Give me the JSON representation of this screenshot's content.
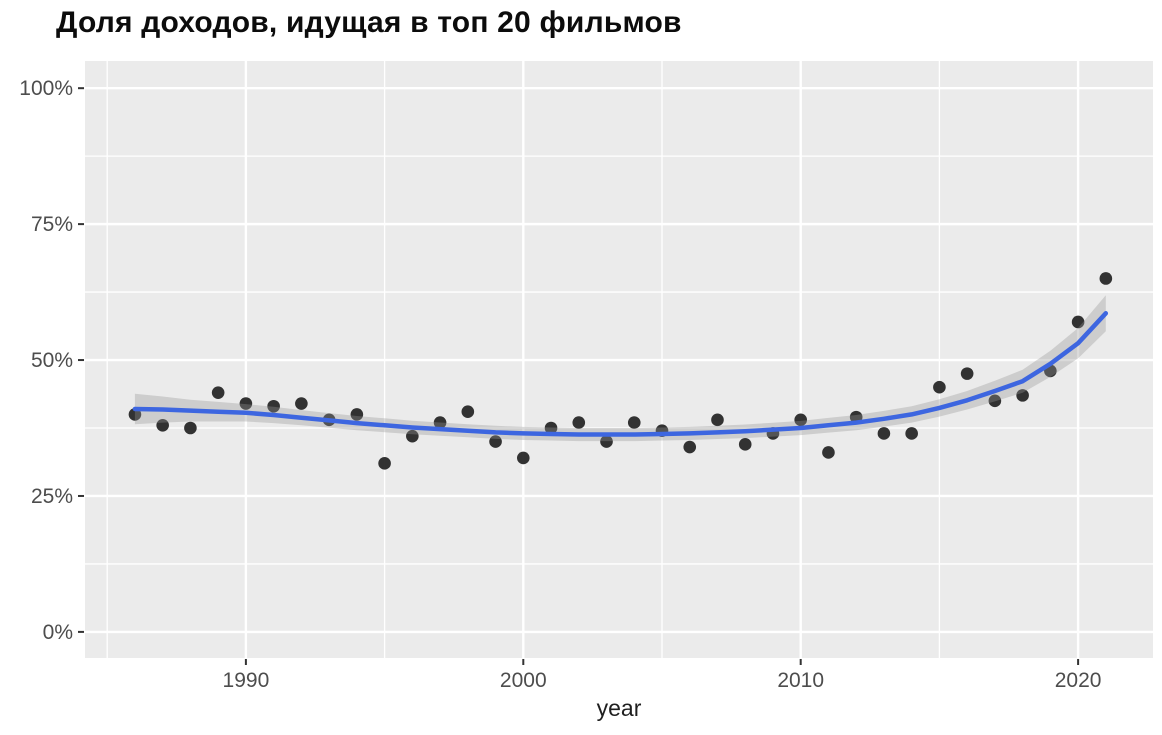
{
  "title": "Доля доходов, идущая в топ 20 фильмов",
  "chart_data": {
    "type": "scatter",
    "title": "Доля доходов, идущая в топ 20 фильмов",
    "xlabel": "year",
    "ylabel": "",
    "legend": false,
    "grid": true,
    "x_axis": {
      "range": [
        1984.2,
        2022.7
      ],
      "ticks": [
        {
          "value": 1990,
          "label": "1990"
        },
        {
          "value": 2000,
          "label": "2000"
        },
        {
          "value": 2010,
          "label": "2010"
        },
        {
          "value": 2020,
          "label": "2020"
        }
      ],
      "minor": [
        1985,
        1995,
        2005,
        2015
      ]
    },
    "y_axis": {
      "range": [
        -4.8,
        105.0
      ],
      "ticks": [
        {
          "value": 0,
          "label": "0%"
        },
        {
          "value": 25,
          "label": "25%"
        },
        {
          "value": 50,
          "label": "50%"
        },
        {
          "value": 75,
          "label": "75%"
        },
        {
          "value": 100,
          "label": "100%"
        }
      ],
      "minor": [
        12.5,
        37.5,
        62.5,
        87.5
      ]
    },
    "series": [
      {
        "name": "top-20-share-points",
        "type": "scatter",
        "points": [
          [
            1986,
            40
          ],
          [
            1987,
            38
          ],
          [
            1988,
            37.5
          ],
          [
            1989,
            44
          ],
          [
            1990,
            42
          ],
          [
            1991,
            41.5
          ],
          [
            1992,
            42
          ],
          [
            1993,
            39
          ],
          [
            1994,
            40
          ],
          [
            1995,
            31
          ],
          [
            1996,
            36
          ],
          [
            1997,
            38.5
          ],
          [
            1998,
            40.5
          ],
          [
            1999,
            35
          ],
          [
            2000,
            32
          ],
          [
            2001,
            37.5
          ],
          [
            2002,
            38.5
          ],
          [
            2003,
            35
          ],
          [
            2004,
            38.5
          ],
          [
            2005,
            37
          ],
          [
            2006,
            34
          ],
          [
            2007,
            39
          ],
          [
            2008,
            34.5
          ],
          [
            2009,
            36.5
          ],
          [
            2010,
            39
          ],
          [
            2011,
            33
          ],
          [
            2012,
            39.5
          ],
          [
            2013,
            36.5
          ],
          [
            2014,
            36.5
          ],
          [
            2015,
            45
          ],
          [
            2016,
            47.5
          ],
          [
            2017,
            42.5
          ],
          [
            2018,
            43.5
          ],
          [
            2019,
            48
          ],
          [
            2020,
            57
          ],
          [
            2021,
            65
          ]
        ]
      },
      {
        "name": "loess-smooth-with-ci",
        "type": "line",
        "points_y_ci": [
          [
            1986,
            41.0,
            2.8
          ],
          [
            1987,
            40.9,
            2.4
          ],
          [
            1988,
            40.7,
            2.0
          ],
          [
            1989,
            40.5,
            1.8
          ],
          [
            1990,
            40.3,
            1.6
          ],
          [
            1991,
            39.9,
            1.5
          ],
          [
            1992,
            39.4,
            1.4
          ],
          [
            1993,
            38.9,
            1.35
          ],
          [
            1994,
            38.4,
            1.3
          ],
          [
            1995,
            38.0,
            1.28
          ],
          [
            1996,
            37.6,
            1.25
          ],
          [
            1997,
            37.3,
            1.22
          ],
          [
            1998,
            37.0,
            1.2
          ],
          [
            1999,
            36.7,
            1.2
          ],
          [
            2000,
            36.5,
            1.2
          ],
          [
            2001,
            36.4,
            1.2
          ],
          [
            2002,
            36.3,
            1.2
          ],
          [
            2003,
            36.3,
            1.2
          ],
          [
            2004,
            36.3,
            1.2
          ],
          [
            2005,
            36.4,
            1.2
          ],
          [
            2006,
            36.5,
            1.2
          ],
          [
            2007,
            36.7,
            1.22
          ],
          [
            2008,
            36.9,
            1.25
          ],
          [
            2009,
            37.2,
            1.28
          ],
          [
            2010,
            37.5,
            1.3
          ],
          [
            2011,
            38.0,
            1.35
          ],
          [
            2012,
            38.5,
            1.4
          ],
          [
            2013,
            39.2,
            1.45
          ],
          [
            2014,
            40.0,
            1.5
          ],
          [
            2015,
            41.2,
            1.6
          ],
          [
            2016,
            42.6,
            1.7
          ],
          [
            2017,
            44.3,
            1.9
          ],
          [
            2018,
            46.1,
            2.1
          ],
          [
            2019,
            49.3,
            2.4
          ],
          [
            2020,
            53.1,
            2.8
          ],
          [
            2021,
            58.6,
            3.3
          ]
        ]
      }
    ],
    "colors": {
      "panel": "#EBEBEB",
      "grid": "#FFFFFF",
      "point": "#222222",
      "line": "#3D66E0",
      "band": "rgba(150,150,150,0.35)",
      "axis_text": "#4D4D4D",
      "tick_mark": "#333333",
      "title": "#0C0C0C"
    }
  }
}
